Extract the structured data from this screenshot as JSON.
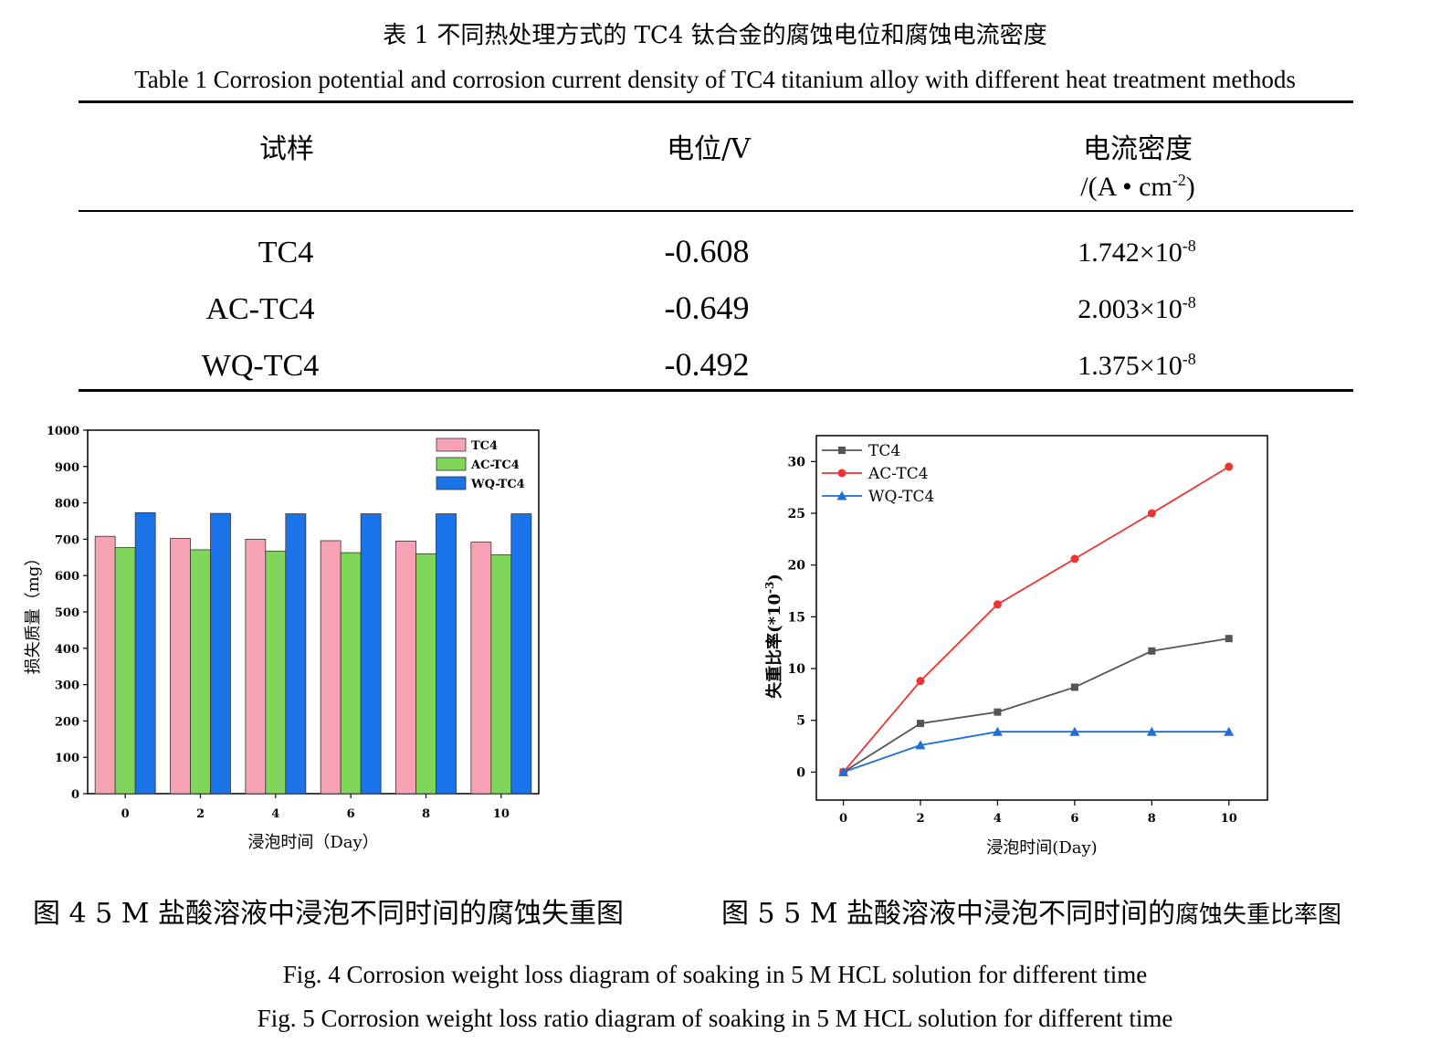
{
  "table": {
    "caption_cn": "表 1  不同热处理方式的 TC4 钛合金的腐蚀电位和腐蚀电流密度",
    "caption_en": "Table 1    Corrosion potential and corrosion current density of TC4 titanium alloy with different heat treatment methods",
    "headers": {
      "sample": "试样",
      "potential": "电位/V",
      "current": "电流密度",
      "current_unit_pre": "/(A • cm",
      "current_unit_exp": "-2",
      "current_unit_post": ")"
    },
    "rows": [
      {
        "sample": "TC4",
        "potential": "-0.608",
        "current_base": "1.742×10",
        "current_exp": "-8"
      },
      {
        "sample": "AC-TC4",
        "potential": "-0.649",
        "current_base": "2.003×10",
        "current_exp": "-8"
      },
      {
        "sample": "WQ-TC4",
        "potential": "-0.492",
        "current_base": "1.375×10",
        "current_exp": "-8"
      }
    ]
  },
  "figure4": {
    "caption_cn": "图 4    5 M 盐酸溶液中浸泡不同时间的腐蚀失重图",
    "caption_en": "Fig. 4 Corrosion weight loss diagram of soaking in 5 M HCL solution for different time"
  },
  "figure5": {
    "caption_cn_main": "图 5    5 M 盐酸溶液中浸泡不同时间的",
    "caption_cn_tail": "腐蚀失重比率图",
    "caption_en": "Fig. 5 Corrosion weight loss ratio diagram of soaking in 5 M HCL solution for different time"
  },
  "chart_data": [
    {
      "type": "bar",
      "title": "",
      "xlabel": "浸泡时间（Day）",
      "ylabel": "损失质量（mg）",
      "categories": [
        "0",
        "2",
        "4",
        "6",
        "8",
        "10"
      ],
      "ylim": [
        0,
        1000
      ],
      "yticks": [
        "0",
        "100",
        "200",
        "300",
        "400",
        "500",
        "600",
        "700",
        "800",
        "900",
        "1000"
      ],
      "legend_position": "top-right",
      "series": [
        {
          "name": "TC4",
          "color": "#f7a3b5",
          "values": [
            708,
            702,
            700,
            696,
            695,
            692
          ]
        },
        {
          "name": "AC-TC4",
          "color": "#7fd65a",
          "values": [
            677,
            671,
            667,
            663,
            660,
            657
          ]
        },
        {
          "name": "WQ-TC4",
          "color": "#1a73e8",
          "values": [
            773,
            771,
            770,
            770,
            770,
            770
          ]
        }
      ]
    },
    {
      "type": "line",
      "title": "",
      "xlabel": "浸泡时间(Day)",
      "ylabel_main": "失重比率(*10",
      "ylabel_exp": "-3",
      "ylabel_post": ")",
      "x": [
        0,
        2,
        4,
        6,
        8,
        10
      ],
      "xticks": [
        "0",
        "2",
        "4",
        "6",
        "8",
        "10"
      ],
      "xlim": [
        -0.7,
        11.0
      ],
      "ylim": [
        -2.7,
        32.5
      ],
      "yticks": [
        "0",
        "5",
        "10",
        "15",
        "20",
        "25",
        "30"
      ],
      "legend_position": "top-left",
      "series": [
        {
          "name": "TC4",
          "color": "#555555",
          "marker": "square",
          "values": [
            0,
            4.7,
            5.8,
            8.2,
            11.7,
            12.9
          ]
        },
        {
          "name": "AC-TC4",
          "color": "#ee3333",
          "marker": "circle",
          "values": [
            0,
            8.8,
            16.2,
            20.6,
            25.0,
            29.5
          ]
        },
        {
          "name": "WQ-TC4",
          "color": "#1f6fd6",
          "marker": "triangle",
          "values": [
            0,
            2.6,
            3.9,
            3.9,
            3.9,
            3.9
          ]
        }
      ]
    }
  ]
}
